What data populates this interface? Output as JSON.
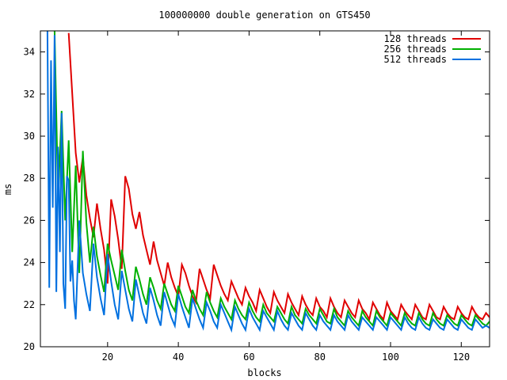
{
  "chart_data": {
    "type": "line",
    "title": "100000000 double generation on GTS450",
    "xlabel": "blocks",
    "ylabel": "ms",
    "xlim": [
      1,
      128
    ],
    "ylim": [
      20,
      35
    ],
    "xticks": [
      20,
      40,
      60,
      80,
      100,
      120
    ],
    "yticks": [
      20,
      22,
      24,
      26,
      28,
      30,
      32,
      34
    ],
    "grid": false,
    "legend_position": "top-right",
    "series": [
      {
        "name": "128 threads",
        "color": "#e00000",
        "x": [
          9,
          11,
          12,
          13,
          14,
          15,
          16,
          17,
          18,
          19,
          20,
          21,
          22,
          23,
          24,
          25,
          26,
          27,
          28,
          29,
          30,
          31,
          32,
          33,
          34,
          35,
          36,
          37,
          38,
          39,
          40,
          41,
          42,
          43,
          44,
          45,
          46,
          47,
          48,
          49,
          50,
          51,
          52,
          53,
          54,
          55,
          56,
          57,
          58,
          59,
          60,
          61,
          62,
          63,
          64,
          65,
          66,
          67,
          68,
          69,
          70,
          71,
          72,
          73,
          74,
          75,
          76,
          77,
          78,
          79,
          80,
          81,
          82,
          83,
          84,
          85,
          86,
          87,
          88,
          89,
          90,
          91,
          92,
          93,
          94,
          95,
          96,
          97,
          98,
          99,
          100,
          101,
          102,
          103,
          104,
          105,
          106,
          107,
          108,
          109,
          110,
          111,
          112,
          113,
          114,
          115,
          116,
          117,
          118,
          119,
          120,
          121,
          122,
          123,
          124,
          125,
          126,
          127,
          128
        ],
        "y": [
          34.9,
          29.2,
          27.8,
          29.0,
          27.2,
          26.1,
          25.2,
          26.8,
          25.6,
          24.6,
          23.0,
          27.0,
          26.2,
          25.1,
          23.7,
          28.1,
          27.5,
          26.3,
          25.6,
          26.4,
          25.3,
          24.6,
          23.9,
          25.0,
          24.1,
          23.5,
          22.9,
          24.0,
          23.3,
          22.8,
          22.4,
          23.9,
          23.5,
          22.9,
          22.4,
          22.1,
          23.7,
          23.2,
          22.7,
          22.3,
          23.9,
          23.4,
          22.9,
          22.5,
          22.2,
          23.1,
          22.7,
          22.3,
          22.0,
          22.8,
          22.4,
          22.1,
          21.7,
          22.7,
          22.3,
          21.9,
          21.6,
          22.6,
          22.2,
          21.9,
          21.6,
          22.5,
          22.1,
          21.8,
          21.5,
          22.4,
          22.0,
          21.7,
          21.5,
          22.3,
          21.9,
          21.7,
          21.4,
          22.3,
          21.9,
          21.6,
          21.4,
          22.2,
          21.9,
          21.6,
          21.4,
          22.2,
          21.8,
          21.6,
          21.3,
          22.1,
          21.8,
          21.5,
          21.3,
          22.1,
          21.7,
          21.5,
          21.3,
          22.0,
          21.7,
          21.5,
          21.3,
          22.0,
          21.7,
          21.4,
          21.3,
          22.0,
          21.7,
          21.4,
          21.3,
          21.9,
          21.6,
          21.4,
          21.3,
          21.9,
          21.6,
          21.4,
          21.3,
          21.9,
          21.6,
          21.4,
          21.3,
          21.6,
          21.4
        ]
      },
      {
        "name": "256 threads",
        "color": "#00b000",
        "x": [
          5,
          6,
          7,
          8,
          9,
          10,
          11,
          12,
          13,
          14,
          15,
          16,
          17,
          18,
          19,
          20,
          21,
          22,
          23,
          24,
          25,
          26,
          27,
          28,
          29,
          30,
          31,
          32,
          33,
          34,
          35,
          36,
          37,
          38,
          39,
          40,
          41,
          42,
          43,
          44,
          45,
          46,
          47,
          48,
          49,
          50,
          51,
          52,
          53,
          54,
          55,
          56,
          57,
          58,
          59,
          60,
          61,
          62,
          63,
          64,
          65,
          66,
          67,
          68,
          69,
          70,
          71,
          72,
          73,
          74,
          75,
          76,
          77,
          78,
          79,
          80,
          81,
          82,
          83,
          84,
          85,
          86,
          87,
          88,
          89,
          90,
          91,
          92,
          93,
          94,
          95,
          96,
          97,
          98,
          99,
          100,
          101,
          102,
          103,
          104,
          105,
          106,
          107,
          108,
          109,
          110,
          111,
          112,
          113,
          114,
          115,
          116,
          117,
          118,
          119,
          120,
          121,
          122,
          123,
          124,
          125,
          126,
          127,
          128
        ],
        "y": [
          35.0,
          27.0,
          31.2,
          26.0,
          29.8,
          24.5,
          28.6,
          23.5,
          29.3,
          25.9,
          24.0,
          25.7,
          24.3,
          23.4,
          22.6,
          24.9,
          24.1,
          23.4,
          22.7,
          24.6,
          23.6,
          22.7,
          22.2,
          23.8,
          23.2,
          22.5,
          22.0,
          23.3,
          22.8,
          22.2,
          21.8,
          23.0,
          22.5,
          22.0,
          21.7,
          22.9,
          22.4,
          21.9,
          21.6,
          22.7,
          22.2,
          21.8,
          21.5,
          22.6,
          22.1,
          21.7,
          21.4,
          22.3,
          21.9,
          21.6,
          21.3,
          22.2,
          21.8,
          21.5,
          21.3,
          22.1,
          21.7,
          21.4,
          21.2,
          22.0,
          21.6,
          21.4,
          21.2,
          21.9,
          21.6,
          21.3,
          21.1,
          21.9,
          21.5,
          21.3,
          21.1,
          21.8,
          21.5,
          21.3,
          21.1,
          21.8,
          21.5,
          21.2,
          21.1,
          21.8,
          21.4,
          21.2,
          21.0,
          21.7,
          21.4,
          21.2,
          21.0,
          21.7,
          21.4,
          21.2,
          21.0,
          21.7,
          21.4,
          21.2,
          21.0,
          21.6,
          21.4,
          21.2,
          21.0,
          21.6,
          21.3,
          21.1,
          21.0,
          21.6,
          21.3,
          21.1,
          21.0,
          21.6,
          21.3,
          21.1,
          21.0,
          21.5,
          21.3,
          21.1,
          21.0,
          21.5,
          21.3,
          21.1,
          21.0,
          21.5,
          21.3,
          21.1,
          21.0,
          21.2
        ]
      },
      {
        "name": "512 threads",
        "color": "#0070e0",
        "x": [
          3,
          3.5,
          4,
          4.5,
          5,
          5.5,
          6,
          6.5,
          7,
          7.5,
          8,
          8.5,
          9,
          9.5,
          10,
          10.5,
          11,
          12,
          13,
          14,
          15,
          16,
          17,
          18,
          19,
          20,
          21,
          22,
          23,
          24,
          25,
          26,
          27,
          28,
          29,
          30,
          31,
          32,
          33,
          34,
          35,
          36,
          37,
          38,
          39,
          40,
          41,
          42,
          43,
          44,
          45,
          46,
          47,
          48,
          49,
          50,
          51,
          52,
          53,
          54,
          55,
          56,
          57,
          58,
          59,
          60,
          61,
          62,
          63,
          64,
          65,
          66,
          67,
          68,
          69,
          70,
          71,
          72,
          73,
          74,
          75,
          76,
          77,
          78,
          79,
          80,
          81,
          82,
          83,
          84,
          85,
          86,
          87,
          88,
          89,
          90,
          91,
          92,
          93,
          94,
          95,
          96,
          97,
          98,
          99,
          100,
          101,
          102,
          103,
          104,
          105,
          106,
          107,
          108,
          109,
          110,
          111,
          112,
          113,
          114,
          115,
          116,
          117,
          118,
          119,
          120,
          121,
          122,
          123,
          124,
          125,
          126,
          127,
          128
        ],
        "y": [
          35.0,
          22.8,
          33.6,
          26.6,
          34.8,
          22.6,
          29.5,
          24.5,
          31.1,
          23.0,
          21.8,
          28.1,
          27.9,
          23.1,
          24.1,
          22.2,
          21.3,
          26.0,
          23.5,
          22.5,
          21.7,
          24.9,
          23.3,
          22.3,
          21.5,
          24.4,
          23.1,
          22.0,
          21.3,
          23.6,
          22.7,
          21.8,
          21.2,
          23.2,
          22.4,
          21.6,
          21.1,
          22.8,
          22.2,
          21.5,
          21.0,
          22.6,
          22.0,
          21.4,
          21.0,
          22.5,
          21.9,
          21.4,
          20.9,
          22.3,
          21.8,
          21.3,
          20.9,
          22.1,
          21.7,
          21.2,
          20.9,
          22.0,
          21.6,
          21.2,
          20.8,
          21.9,
          21.5,
          21.1,
          20.8,
          21.8,
          21.4,
          21.1,
          20.8,
          21.7,
          21.4,
          21.1,
          20.8,
          21.7,
          21.3,
          21.0,
          20.8,
          21.6,
          21.3,
          21.0,
          20.8,
          21.6,
          21.3,
          21.0,
          20.8,
          21.5,
          21.2,
          21.0,
          20.8,
          21.5,
          21.2,
          21.0,
          20.8,
          21.5,
          21.2,
          21.0,
          20.8,
          21.4,
          21.2,
          21.0,
          20.8,
          21.4,
          21.2,
          21.0,
          20.8,
          21.4,
          21.2,
          21.0,
          20.8,
          21.4,
          21.1,
          20.9,
          20.8,
          21.4,
          21.1,
          20.9,
          20.8,
          21.3,
          21.1,
          20.9,
          20.8,
          21.3,
          21.1,
          20.9,
          20.8,
          21.3,
          21.1,
          20.9,
          20.8,
          21.3,
          21.1,
          20.9,
          21.0,
          20.9
        ]
      }
    ]
  }
}
